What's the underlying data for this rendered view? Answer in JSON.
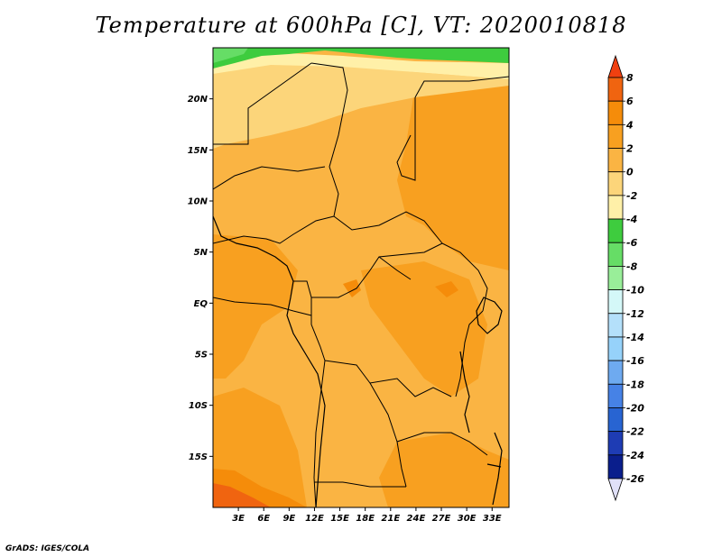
{
  "title": "Temperature at 600hPa [C], VT: 2020010818",
  "credit": "GrADS: IGES/COLA",
  "map": {
    "projection": "lat-lon",
    "lon_range": [
      0,
      35
    ],
    "lat_range": [
      -20,
      25
    ],
    "lat_ticks": [
      {
        "value": 20,
        "label": "20N"
      },
      {
        "value": 15,
        "label": "15N"
      },
      {
        "value": 10,
        "label": "10N"
      },
      {
        "value": 5,
        "label": "5N"
      },
      {
        "value": 0,
        "label": "EQ"
      },
      {
        "value": -5,
        "label": "5S"
      },
      {
        "value": -10,
        "label": "10S"
      },
      {
        "value": -15,
        "label": "15S"
      }
    ],
    "lon_ticks": [
      {
        "value": 3,
        "label": "3E"
      },
      {
        "value": 6,
        "label": "6E"
      },
      {
        "value": 9,
        "label": "9E"
      },
      {
        "value": 12,
        "label": "12E"
      },
      {
        "value": 15,
        "label": "15E"
      },
      {
        "value": 18,
        "label": "18E"
      },
      {
        "value": 21,
        "label": "21E"
      },
      {
        "value": 24,
        "label": "24E"
      },
      {
        "value": 27,
        "label": "27E"
      },
      {
        "value": 30,
        "label": "30E"
      },
      {
        "value": 33,
        "label": "33E"
      }
    ]
  },
  "colorbar": {
    "labels": [
      "8",
      "6",
      "4",
      "2",
      "0",
      "-2",
      "-4",
      "-6",
      "-8",
      "-10",
      "-12",
      "-14",
      "-16",
      "-18",
      "-20",
      "-22",
      "-24",
      "-26"
    ],
    "colors_top_to_bottom": [
      "#f04010",
      "#f06410",
      "#f58c0a",
      "#f8a020",
      "#fab443",
      "#fcd57a",
      "#fff0a8",
      "#3ecc3e",
      "#66dd66",
      "#99ee99",
      "#d4f8f8",
      "#b4e0fa",
      "#96d2fa",
      "#6eaaf0",
      "#4682e6",
      "#2864d2",
      "#1e3cb4",
      "#0a1e8c",
      "#e0e0f8"
    ]
  }
}
